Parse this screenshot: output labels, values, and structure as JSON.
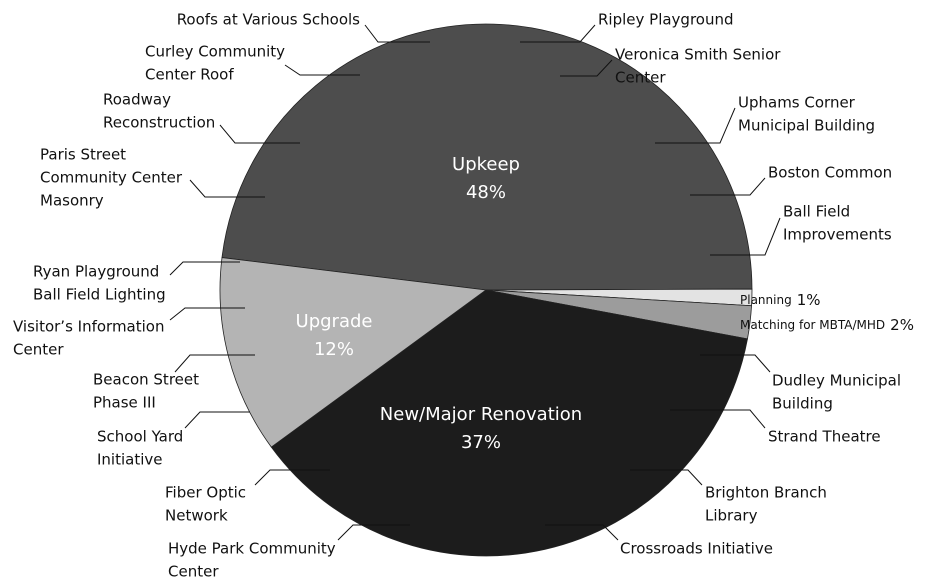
{
  "chart_data": {
    "type": "pie",
    "categories": [
      "Upkeep",
      "Planning",
      "Matching for MBTA/MHD",
      "New/Major Renovation",
      "Upgrade"
    ],
    "values": [
      48,
      1,
      2,
      37,
      12
    ],
    "value_labels": [
      "48%",
      "1%",
      "2%",
      "37%",
      "12%"
    ],
    "colors": [
      "#4d4d4d",
      "#e3e3e3",
      "#9c9c9c",
      "#1c1c1c",
      "#b4b4b4"
    ],
    "annotations": [
      [
        "Roofs at Various Schools"
      ],
      [
        "Ripley Playground"
      ],
      [
        "Veronica Smith Senior",
        "Center"
      ],
      [
        "Uphams Corner",
        "Municipal Building"
      ],
      [
        "Boston Common"
      ],
      [
        "Ball Field",
        "Improvements"
      ],
      [
        "Dudley Municipal",
        "Building"
      ],
      [
        "Strand Theatre"
      ],
      [
        "Brighton Branch",
        "Library"
      ],
      [
        "Crossroads Initiative"
      ],
      [
        "Hyde Park Community",
        "Center"
      ],
      [
        "Fiber Optic",
        "Network"
      ],
      [
        "School Yard",
        "Initiative"
      ],
      [
        "Beacon Street",
        "Phase III"
      ],
      [
        "Visitor’s Information",
        "Center"
      ],
      [
        "Ryan Playground",
        "Ball Field Lighting"
      ],
      [
        "Paris Street",
        "Community Center",
        "Masonry"
      ],
      [
        "Roadway",
        "Reconstruction"
      ],
      [
        "Curley Community",
        "Center Roof"
      ]
    ]
  }
}
